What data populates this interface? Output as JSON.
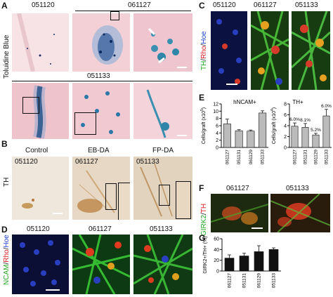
{
  "panels": {
    "A": {
      "label": "A",
      "stain": "Toluidine Blue",
      "samples": [
        "051120",
        "061127",
        "051133"
      ]
    },
    "B": {
      "label": "B",
      "stain": "TH",
      "columns": [
        "Control",
        "EB-DA",
        "FP-DA"
      ],
      "samples": [
        "051120",
        "061127",
        "051133"
      ]
    },
    "C": {
      "label": "C",
      "stain_parts": [
        {
          "text": "TH",
          "color": "#22aa22"
        },
        {
          "text": "/",
          "color": "#111111"
        },
        {
          "text": "Rho",
          "color": "#dd2222"
        },
        {
          "text": "/",
          "color": "#111111"
        },
        {
          "text": "Hoe",
          "color": "#2244cc"
        }
      ],
      "samples": [
        "051120",
        "061127",
        "051133"
      ]
    },
    "D": {
      "label": "D",
      "stain_parts": [
        {
          "text": "NCAM",
          "color": "#22aa22"
        },
        {
          "text": "/",
          "color": "#111111"
        },
        {
          "text": "Rho",
          "color": "#dd2222"
        },
        {
          "text": "/",
          "color": "#111111"
        },
        {
          "text": "Hoe",
          "color": "#2244cc"
        }
      ],
      "samples": [
        "051120",
        "061127",
        "051133"
      ]
    },
    "E": {
      "label": "E"
    },
    "F": {
      "label": "F",
      "stain_parts": [
        {
          "text": "GIRK2",
          "color": "#22aa22"
        },
        {
          "text": "/",
          "color": "#111111"
        },
        {
          "text": "TH",
          "color": "#dd2222"
        }
      ],
      "samples": [
        "061127",
        "051133"
      ]
    },
    "G": {
      "label": "G"
    }
  },
  "chart_data": [
    {
      "type": "bar",
      "panel": "E-left",
      "title": "hNCAM+",
      "ylabel": "Cells/graft (x10",
      "ylabel_sup": "5",
      "ylabel_end": ")",
      "categories": [
        "061127",
        "051131",
        "061129",
        "051133"
      ],
      "values": [
        6.5,
        4.6,
        4.5,
        9.5
      ],
      "errors": [
        1.3,
        0.3,
        0.3,
        0.6
      ],
      "ylim": [
        0,
        12
      ],
      "yticks": [
        0,
        2,
        4,
        6,
        8,
        10,
        12
      ],
      "bar_color": "#bbbbbb"
    },
    {
      "type": "bar",
      "panel": "E-right",
      "title": "TH+",
      "ylabel": "Cells/graft (x10",
      "ylabel_sup": "4",
      "ylabel_end": ")",
      "categories": [
        "061127",
        "051131",
        "061129",
        "051133"
      ],
      "values": [
        3.9,
        3.7,
        2.3,
        5.8
      ],
      "errors": [
        0.6,
        0.7,
        0.3,
        1.2
      ],
      "percent_labels": [
        "6.0%",
        "8.1%",
        "5.2%",
        "6.0%"
      ],
      "ylim": [
        0,
        8
      ],
      "yticks": [
        0,
        2,
        4,
        6,
        8
      ],
      "bar_color": "#bbbbbb"
    },
    {
      "type": "bar",
      "panel": "G",
      "ylabel": "GIRK2+/TH+ (%)",
      "categories": [
        "061127",
        "051131",
        "061129",
        "051133"
      ],
      "values": [
        24,
        28,
        36,
        40
      ],
      "errors": [
        6,
        5,
        11,
        3
      ],
      "ylim": [
        0,
        60
      ],
      "yticks": [
        0,
        20,
        40,
        60
      ],
      "bar_color": "#111111"
    }
  ]
}
